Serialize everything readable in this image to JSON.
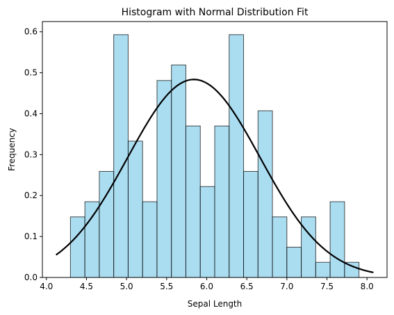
{
  "chart_data": {
    "type": "bar",
    "title": "Histogram with Normal Distribution Fit",
    "xlabel": "Sepal Length",
    "ylabel": "Frequency",
    "xlim": [
      3.95,
      8.25
    ],
    "ylim": [
      0.0,
      0.625
    ],
    "xticks": [
      4.0,
      4.5,
      5.0,
      5.5,
      6.0,
      6.5,
      7.0,
      7.5,
      8.0
    ],
    "yticks": [
      0.0,
      0.1,
      0.2,
      0.3,
      0.4,
      0.5,
      0.6
    ],
    "grid": false,
    "bins": {
      "edges": [
        4.3,
        4.48,
        4.66,
        4.84,
        5.02,
        5.2,
        5.38,
        5.56,
        5.74,
        5.92,
        6.1,
        6.28,
        6.46,
        6.64,
        6.82,
        7.0,
        7.18,
        7.36,
        7.54,
        7.72,
        7.9
      ],
      "values": [
        0.148,
        0.185,
        0.259,
        0.593,
        0.333,
        0.185,
        0.481,
        0.519,
        0.37,
        0.222,
        0.37,
        0.593,
        0.259,
        0.407,
        0.148,
        0.074,
        0.148,
        0.037,
        0.185,
        0.037
      ],
      "fill": "#87CEEB",
      "edge": "#000000"
    },
    "fit": {
      "distribution": "normal",
      "mean": 5.84,
      "std": 0.825,
      "x_range": [
        4.12,
        8.08
      ],
      "color": "#000000"
    }
  }
}
